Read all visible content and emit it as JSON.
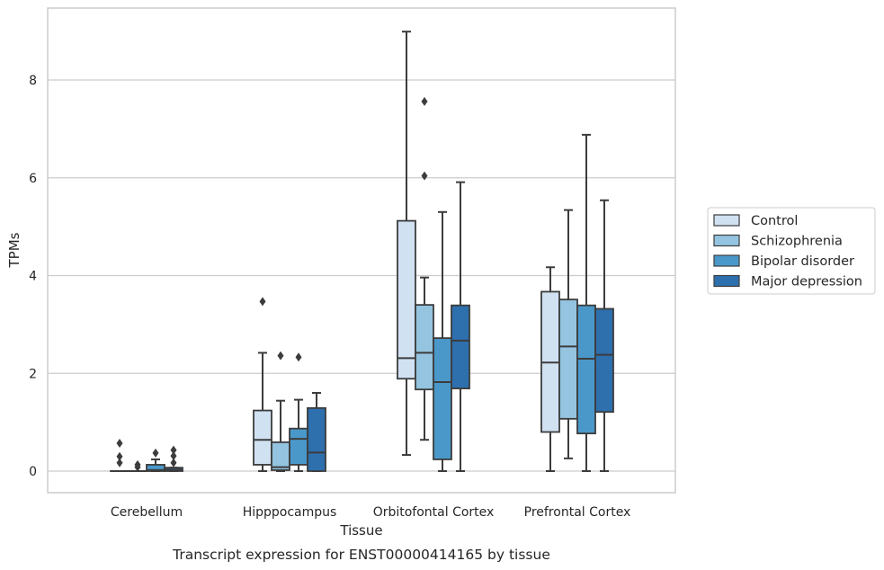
{
  "caption": "Transcript expression for ENST00000414165 by tissue",
  "chart_data": {
    "type": "box",
    "xlabel": "Tissue",
    "ylabel": "TPMs",
    "ylim": [
      -0.45,
      9.6
    ],
    "yticks": [
      0,
      2,
      4,
      6,
      8
    ],
    "grid": "horizontal",
    "legend_position": "right",
    "categories": [
      "Cerebellum",
      "Hipppocampus",
      "Orbitofontal Cortex",
      "Prefrontal Cortex"
    ],
    "series": [
      {
        "name": "Control",
        "color": "#d0e1f2",
        "boxes": [
          {
            "whislo": 0,
            "q1": 0,
            "med": 0,
            "q3": 0,
            "whishi": 0,
            "fliers": [
              0.17,
              0.3,
              0.57
            ]
          },
          {
            "whislo": 0,
            "q1": 0.13,
            "med": 0.64,
            "q3": 1.24,
            "whishi": 2.42,
            "fliers": [
              3.47
            ]
          },
          {
            "whislo": 0.33,
            "q1": 1.89,
            "med": 2.31,
            "q3": 5.12,
            "whishi": 8.99,
            "fliers": []
          },
          {
            "whislo": 0,
            "q1": 0.8,
            "med": 2.22,
            "q3": 3.67,
            "whishi": 4.17,
            "fliers": []
          }
        ]
      },
      {
        "name": "Schizophrenia",
        "color": "#94c4df",
        "boxes": [
          {
            "whislo": 0,
            "q1": 0,
            "med": 0,
            "q3": 0,
            "whishi": 0,
            "fliers": [
              0.08,
              0.13
            ]
          },
          {
            "whislo": 0,
            "q1": 0.02,
            "med": 0.08,
            "q3": 0.59,
            "whishi": 1.44,
            "fliers": [
              2.36
            ]
          },
          {
            "whislo": 0.64,
            "q1": 1.67,
            "med": 2.42,
            "q3": 3.4,
            "whishi": 3.96,
            "fliers": [
              6.04,
              7.56
            ]
          },
          {
            "whislo": 0.26,
            "q1": 1.07,
            "med": 2.55,
            "q3": 3.51,
            "whishi": 5.34,
            "fliers": []
          }
        ]
      },
      {
        "name": "Bipolar disorder",
        "color": "#4a98c9",
        "boxes": [
          {
            "whislo": 0,
            "q1": 0,
            "med": 0.02,
            "q3": 0.13,
            "whishi": 0.24,
            "fliers": [
              0.37
            ]
          },
          {
            "whislo": 0,
            "q1": 0.13,
            "med": 0.66,
            "q3": 0.87,
            "whishi": 1.46,
            "fliers": [
              2.33
            ]
          },
          {
            "whislo": 0,
            "q1": 0.24,
            "med": 1.82,
            "q3": 2.72,
            "whishi": 5.3,
            "fliers": []
          },
          {
            "whislo": 0,
            "q1": 0.77,
            "med": 2.3,
            "q3": 3.39,
            "whishi": 6.88,
            "fliers": []
          }
        ]
      },
      {
        "name": "Major depression",
        "color": "#2e6fad",
        "boxes": [
          {
            "whislo": 0,
            "q1": 0,
            "med": 0.03,
            "q3": 0.07,
            "whishi": 0.07,
            "fliers": [
              0.17,
              0.31,
              0.43
            ]
          },
          {
            "whislo": 0,
            "q1": 0,
            "med": 0.38,
            "q3": 1.29,
            "whishi": 1.6,
            "fliers": []
          },
          {
            "whislo": 0,
            "q1": 1.69,
            "med": 2.67,
            "q3": 3.39,
            "whishi": 5.91,
            "fliers": []
          },
          {
            "whislo": 0,
            "q1": 1.21,
            "med": 2.38,
            "q3": 3.32,
            "whishi": 5.54,
            "fliers": []
          }
        ]
      }
    ]
  }
}
